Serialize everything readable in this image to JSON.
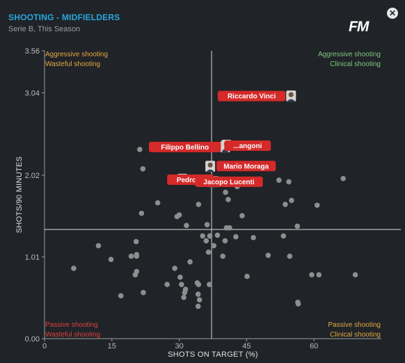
{
  "header": {
    "title": "SHOOTING - MIDFIELDERS",
    "subtitle": "Serie B, This Season",
    "logo_text": "FM",
    "close_symbol": "✕"
  },
  "colors": {
    "background": "#202327",
    "title": "#29a8df",
    "points": "#8e8e8e",
    "highlight": "#d42a2a",
    "aggressive_clinical": "#7ec97e",
    "aggressive_wasteful": "#e3a845",
    "passive_wasteful": "#e14040",
    "passive_clinical": "#e3a845"
  },
  "chart_data": {
    "type": "scatter",
    "title": "SHOOTING - MIDFIELDERS",
    "subtitle": "Serie B, This Season",
    "xlabel": "SHOTS ON TARGET (%)",
    "ylabel": "SHOTS/90 MINUTES",
    "xlim": [
      0,
      75
    ],
    "ylim": [
      0,
      3.56
    ],
    "x_ticks": [
      0,
      15,
      30,
      45,
      60
    ],
    "x_tick_labels": [
      "0",
      "15",
      "30",
      "45",
      "60"
    ],
    "y_ticks": [
      0,
      1.01,
      2.02,
      3.04,
      3.56
    ],
    "y_tick_labels": [
      "0.00",
      "1.01",
      "2.02",
      "3.04",
      "3.56"
    ],
    "reference_lines": {
      "x": 37.2,
      "y": 1.35
    },
    "quadrant_labels": {
      "top_left": [
        "Aggressive shooting",
        "Wasteful shooting"
      ],
      "top_right": [
        "Aggressive shooting",
        "Clinical shooting"
      ],
      "bottom_left": [
        "Passive shooting",
        "Wasteful shooting"
      ],
      "bottom_right": [
        "Passive shooting",
        "Clinical shooting"
      ]
    },
    "highlighted": [
      {
        "label": "Riccardo Vinci",
        "x": 54.9,
        "y": 3.0
      },
      {
        "label": "Filippo Bellino",
        "x": 40.2,
        "y": 2.37
      },
      {
        "label": "...angoni",
        "x": 40.5,
        "y": 2.39
      },
      {
        "label": "Mario Moraga",
        "x": 36.9,
        "y": 2.13
      },
      {
        "label": "Pedro ...",
        "x": 30.7,
        "y": 1.97
      },
      {
        "label": "Jacopo Lucenti",
        "x": 37.7,
        "y": 1.94
      }
    ],
    "points": [
      [
        6.5,
        0.87
      ],
      [
        12,
        1.15
      ],
      [
        14.8,
        0.98
      ],
      [
        17,
        0.53
      ],
      [
        19.3,
        1.02
      ],
      [
        20.5,
        1.02
      ],
      [
        20.5,
        1.04
      ],
      [
        20.5,
        0.83
      ],
      [
        20.2,
        0.79
      ],
      [
        20.4,
        1.2
      ],
      [
        21.2,
        2.34
      ],
      [
        22,
        0.57
      ],
      [
        21.9,
        2.1
      ],
      [
        21.6,
        1.55
      ],
      [
        25.2,
        1.68
      ],
      [
        27.3,
        0.67
      ],
      [
        29,
        0.87
      ],
      [
        29.5,
        1.51
      ],
      [
        30,
        1.53
      ],
      [
        30.2,
        0.76
      ],
      [
        30.5,
        0.67
      ],
      [
        31.4,
        0.61
      ],
      [
        31,
        0.51
      ],
      [
        31.2,
        0.57
      ],
      [
        31.6,
        1.4
      ],
      [
        32.4,
        0.95
      ],
      [
        34,
        0.69
      ],
      [
        34.5,
        0.48
      ],
      [
        34.2,
        0.55
      ],
      [
        34.3,
        0.67
      ],
      [
        34.2,
        0.4
      ],
      [
        34.3,
        1.66
      ],
      [
        35.2,
        1.27
      ],
      [
        36,
        1.21
      ],
      [
        36.7,
        0.67
      ],
      [
        36.5,
        1.07
      ],
      [
        36.8,
        1.27
      ],
      [
        36.2,
        1.41
      ],
      [
        37.7,
        1.15
      ],
      [
        38.5,
        1.28
      ],
      [
        39.7,
        1.02
      ],
      [
        40.2,
        1.21
      ],
      [
        40.5,
        1.37
      ],
      [
        41.2,
        1.37
      ],
      [
        40.3,
        1.81
      ],
      [
        40.9,
        1.72
      ],
      [
        42.6,
        1.26
      ],
      [
        42.9,
        1.88
      ],
      [
        44,
        1.52
      ],
      [
        45.1,
        0.77
      ],
      [
        46.5,
        1.25
      ],
      [
        49.8,
        1.03
      ],
      [
        52.2,
        1.96
      ],
      [
        53.2,
        1.27
      ],
      [
        53.6,
        1.66
      ],
      [
        54.4,
        1.94
      ],
      [
        54.6,
        1.02
      ],
      [
        55,
        1.71
      ],
      [
        56.4,
        0.45
      ],
      [
        56.5,
        0.43
      ],
      [
        56.3,
        1.39
      ],
      [
        59.5,
        0.79
      ],
      [
        60.7,
        1.65
      ],
      [
        61.1,
        0.79
      ],
      [
        66.5,
        1.98
      ],
      [
        69.2,
        0.79
      ]
    ]
  }
}
